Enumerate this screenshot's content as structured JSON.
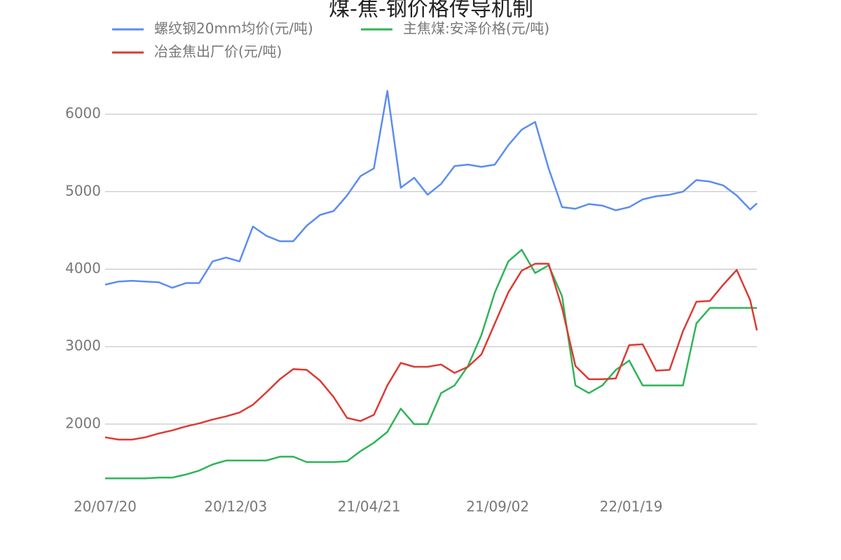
{
  "chart_data": {
    "type": "line",
    "title": "煤-焦-钢价格传导机制",
    "x": [
      "20/07/20",
      "20/08/03",
      "20/08/17",
      "20/08/31",
      "20/09/14",
      "20/09/28",
      "20/10/12",
      "20/10/26",
      "20/11/09",
      "20/11/23",
      "20/12/07",
      "20/12/21",
      "21/01/04",
      "21/01/18",
      "21/02/01",
      "21/02/15",
      "21/03/01",
      "21/03/15",
      "21/03/29",
      "21/04/12",
      "21/04/26",
      "21/05/10",
      "21/05/24",
      "21/06/07",
      "21/06/21",
      "21/07/05",
      "21/07/19",
      "21/08/02",
      "21/08/16",
      "21/08/30",
      "21/09/13",
      "21/09/27",
      "21/10/11",
      "21/10/25",
      "21/11/08",
      "21/11/22",
      "21/12/06",
      "21/12/20",
      "22/01/03",
      "22/01/17",
      "22/01/31",
      "22/02/14",
      "22/02/28",
      "22/03/14",
      "22/03/28",
      "22/04/11",
      "22/04/25",
      "22/05/09",
      "22/05/23",
      "22/05/30"
    ],
    "series": [
      {
        "name": "螺纹钢20mm均价(元/吨)",
        "color": "#5b8def",
        "values": [
          3800,
          3840,
          3850,
          3840,
          3830,
          3760,
          3820,
          3820,
          4100,
          4150,
          4100,
          4550,
          4430,
          4360,
          4360,
          4560,
          4700,
          4750,
          4950,
          5200,
          5300,
          6300,
          5050,
          5180,
          4960,
          5100,
          5330,
          5350,
          5320,
          5350,
          5600,
          5800,
          5900,
          5300,
          4800,
          4780,
          4840,
          4820,
          4760,
          4800,
          4900,
          4940,
          4960,
          5000,
          5150,
          5130,
          5080,
          4950,
          4770,
          4850
        ]
      },
      {
        "name": "主焦煤:安泽价格(元/吨)",
        "color": "#2fb457",
        "values": [
          1300,
          1300,
          1300,
          1300,
          1310,
          1310,
          1350,
          1400,
          1480,
          1530,
          1530,
          1530,
          1530,
          1580,
          1580,
          1510,
          1510,
          1510,
          1520,
          1650,
          1760,
          1900,
          2200,
          2000,
          2000,
          2400,
          2500,
          2750,
          3150,
          3700,
          4100,
          4250,
          3950,
          4050,
          3650,
          2500,
          2400,
          2500,
          2700,
          2820,
          2500,
          2500,
          2500,
          2500,
          3300,
          3500,
          3500,
          3500,
          3500,
          3500
        ]
      },
      {
        "name": "冶金焦出厂价(元/吨)",
        "color": "#dc3a32",
        "values": [
          1830,
          1800,
          1800,
          1830,
          1880,
          1920,
          1970,
          2010,
          2060,
          2100,
          2150,
          2250,
          2410,
          2580,
          2710,
          2700,
          2560,
          2350,
          2080,
          2040,
          2120,
          2500,
          2790,
          2740,
          2740,
          2770,
          2660,
          2740,
          2900,
          3300,
          3700,
          3980,
          4070,
          4070,
          3500,
          2750,
          2580,
          2580,
          2590,
          3020,
          3030,
          2690,
          2700,
          3200,
          3580,
          3590,
          3800,
          3990,
          3600,
          3210
        ]
      }
    ],
    "xlim": [
      "20/07/20",
      "22/05/30"
    ],
    "xticks": [
      "20/07/20",
      "20/12/03",
      "21/04/21",
      "21/09/02",
      "22/01/19"
    ],
    "ylim": [
      1150,
      6570
    ],
    "yticks": [
      2000,
      3000,
      4000,
      5000,
      6000
    ],
    "grid": true
  }
}
